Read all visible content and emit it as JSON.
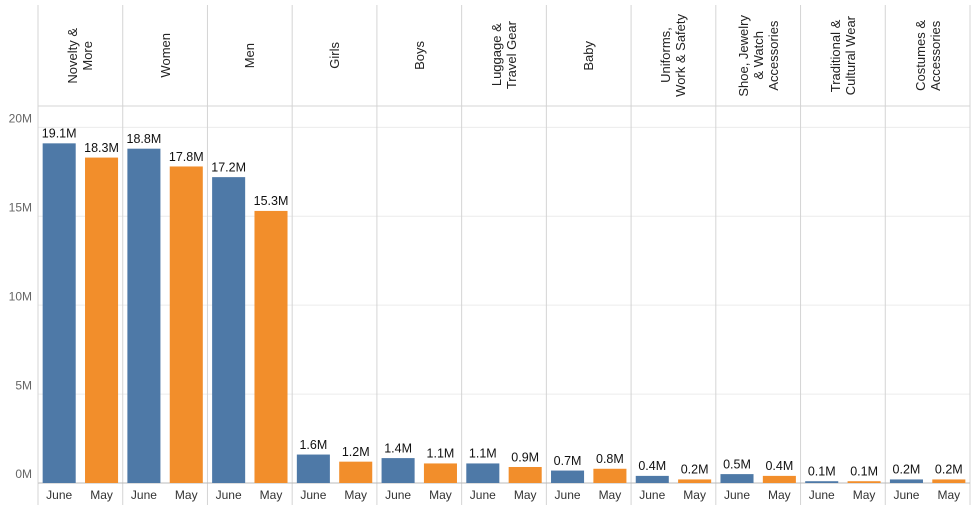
{
  "chart_data": {
    "type": "bar",
    "categories": [
      "Novelty &\nMore",
      "Women",
      "Men",
      "Girls",
      "Boys",
      "Luggage &\nTravel Gear",
      "Baby",
      "Uniforms,\nWork & Safety",
      "Shoe, Jewelry\n& Watch\nAccessories",
      "Traditional &\nCultural Wear",
      "Costumes &\nAccessories"
    ],
    "series": [
      {
        "name": "June",
        "color": "#4e79a7",
        "values": [
          19100000,
          18800000,
          17200000,
          1600000,
          1400000,
          1100000,
          700000,
          400000,
          500000,
          100000,
          200000
        ],
        "value_labels": [
          "19.1M",
          "18.8M",
          "17.2M",
          "1.6M",
          "1.4M",
          "1.1M",
          "0.7M",
          "0.4M",
          "0.5M",
          "0.1M",
          "0.2M"
        ]
      },
      {
        "name": "May",
        "color": "#f28e2b",
        "values": [
          18300000,
          17800000,
          15300000,
          1200000,
          1100000,
          900000,
          800000,
          200000,
          400000,
          100000,
          200000
        ],
        "value_labels": [
          "18.3M",
          "17.8M",
          "15.3M",
          "1.2M",
          "1.1M",
          "0.9M",
          "0.8M",
          "0.2M",
          "0.4M",
          "0.1M",
          "0.2M"
        ]
      }
    ],
    "ylim": [
      0,
      21200000
    ],
    "yticks": [
      {
        "value": 0,
        "label": "0M"
      },
      {
        "value": 5000000,
        "label": "5M"
      },
      {
        "value": 10000000,
        "label": "10M"
      },
      {
        "value": 15000000,
        "label": "15M"
      },
      {
        "value": 20000000,
        "label": "20M"
      }
    ],
    "grid": true
  }
}
